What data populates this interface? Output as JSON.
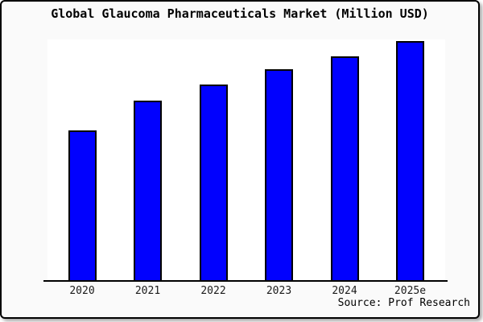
{
  "window": {
    "title": "Global Glaucoma Pharmaceuticals Market (Million USD)"
  },
  "chart_data": {
    "type": "bar",
    "title": "Global Glaucoma Pharmaceuticals Market (Million USD)",
    "categories": [
      "2020",
      "2021",
      "2022",
      "2023",
      "2024",
      "2025e"
    ],
    "values": [
      62.9,
      75.3,
      82.0,
      88.3,
      93.6,
      100.0
    ],
    "values_note": "No y-axis ticks or data labels are shown in the image; values are estimated bar heights expressed as percent of the tallest (2025e) bar",
    "xlabel": "",
    "ylabel": "",
    "ylim": [
      0,
      100
    ],
    "grid": false,
    "legend": null,
    "bar_color": "#0101fe",
    "bar_border_color": "#000000"
  },
  "footer": {
    "source_label": "Source: Prof Research"
  },
  "colors": {
    "background": "#fafafa",
    "plot_background": "#ffffff",
    "frame_border": "#000000",
    "text": "#000000"
  }
}
